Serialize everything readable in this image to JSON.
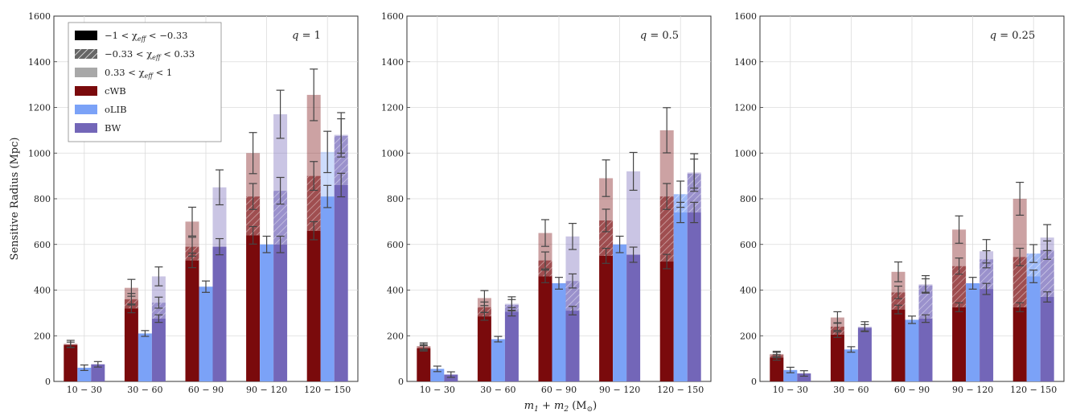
{
  "figure": {
    "ylabel": "Sensitive Radius (Mpc)",
    "xlabel_main": "m",
    "xlabel_sub1": "1",
    "xlabel_plus": " + m",
    "xlabel_sub2": "2",
    "xlabel_unit": " (M",
    "xlabel_sun_sub": "⊙",
    "xlabel_close": ")"
  },
  "legend": [
    {
      "label": "−1 < χ",
      "sub": "eff",
      "tail": " < −0.33",
      "style": "solid-black"
    },
    {
      "label": "−0.33 < χ",
      "sub": "eff",
      "tail": " < 0.33",
      "style": "hatch-gray"
    },
    {
      "label": "0.33 < χ",
      "sub": "eff",
      "tail": " < 1",
      "style": "light-gray"
    },
    {
      "label": "cWB",
      "sub": "",
      "tail": "",
      "style": "cWB"
    },
    {
      "label": "oLIB",
      "sub": "",
      "tail": "",
      "style": "oLIB"
    },
    {
      "label": "BW",
      "sub": "",
      "tail": "",
      "style": "BW"
    }
  ],
  "colors": {
    "cWB": "#7a0a0c",
    "oLIB": "#7ba2f7",
    "BW": "#7366b8"
  },
  "chart_data": [
    {
      "type": "bar",
      "annotation_var": "q",
      "annotation_val": " = 1",
      "categories": [
        "10 − 30",
        "30 − 60",
        "60 − 90",
        "90 − 120",
        "120 − 150"
      ],
      "ylim": [
        0,
        1600
      ],
      "yticks": [
        "0",
        "200",
        "400",
        "600",
        "800",
        "1000",
        "1200",
        "1400",
        "1600"
      ],
      "series": [
        {
          "name": "cWB",
          "low": [
            160,
            320,
            530,
            640,
            660
          ],
          "mid": [
            160,
            360,
            590,
            810,
            900
          ],
          "high": [
            165,
            410,
            700,
            1000,
            1255
          ]
        },
        {
          "name": "oLIB",
          "low": [
            60,
            210,
            415,
            600,
            810
          ],
          "mid": [
            60,
            210,
            415,
            600,
            810
          ],
          "high": [
            60,
            210,
            415,
            600,
            1005
          ]
        },
        {
          "name": "BW",
          "low": [
            75,
            275,
            590,
            600,
            860
          ],
          "mid": [
            75,
            345,
            590,
            835,
            1075
          ],
          "high": [
            75,
            460,
            850,
            1170,
            1080
          ]
        }
      ]
    },
    {
      "type": "bar",
      "annotation_var": "q",
      "annotation_val": " = 0.5",
      "categories": [
        "10 − 30",
        "30 − 60",
        "60 − 90",
        "90 − 120",
        "120 − 150"
      ],
      "ylim": [
        0,
        1600
      ],
      "yticks": [
        "0",
        "200",
        "400",
        "600",
        "800",
        "1000",
        "1200",
        "1400",
        "1600"
      ],
      "series": [
        {
          "name": "cWB",
          "low": [
            145,
            285,
            460,
            550,
            525
          ],
          "mid": [
            150,
            325,
            530,
            705,
            810
          ],
          "high": [
            155,
            365,
            650,
            890,
            1100
          ]
        },
        {
          "name": "oLIB",
          "low": [
            55,
            185,
            430,
            600,
            740
          ],
          "mid": [
            55,
            185,
            430,
            600,
            820
          ],
          "high": [
            55,
            185,
            430,
            600,
            820
          ]
        },
        {
          "name": "BW",
          "low": [
            30,
            305,
            310,
            555,
            740
          ],
          "mid": [
            30,
            335,
            440,
            555,
            910
          ],
          "high": [
            30,
            340,
            635,
            920,
            915
          ]
        }
      ]
    },
    {
      "type": "bar",
      "annotation_var": "q",
      "annotation_val": " = 0.25",
      "categories": [
        "10 − 30",
        "30 − 60",
        "60 − 90",
        "90 − 120",
        "120 − 150"
      ],
      "ylim": [
        0,
        1600
      ],
      "yticks": [
        "0",
        "200",
        "400",
        "600",
        "800",
        "1000",
        "1200",
        "1400",
        "1600"
      ],
      "series": [
        {
          "name": "cWB",
          "low": [
            105,
            205,
            315,
            325,
            325
          ],
          "mid": [
            115,
            240,
            390,
            505,
            545
          ],
          "high": [
            120,
            280,
            480,
            665,
            800
          ]
        },
        {
          "name": "oLIB",
          "low": [
            50,
            140,
            270,
            430,
            460
          ],
          "mid": [
            50,
            140,
            270,
            430,
            560
          ],
          "high": [
            50,
            140,
            270,
            430,
            560
          ]
        },
        {
          "name": "BW",
          "low": [
            35,
            235,
            275,
            405,
            370
          ],
          "mid": [
            35,
            235,
            420,
            535,
            575
          ],
          "high": [
            35,
            240,
            425,
            570,
            630
          ]
        }
      ]
    }
  ]
}
